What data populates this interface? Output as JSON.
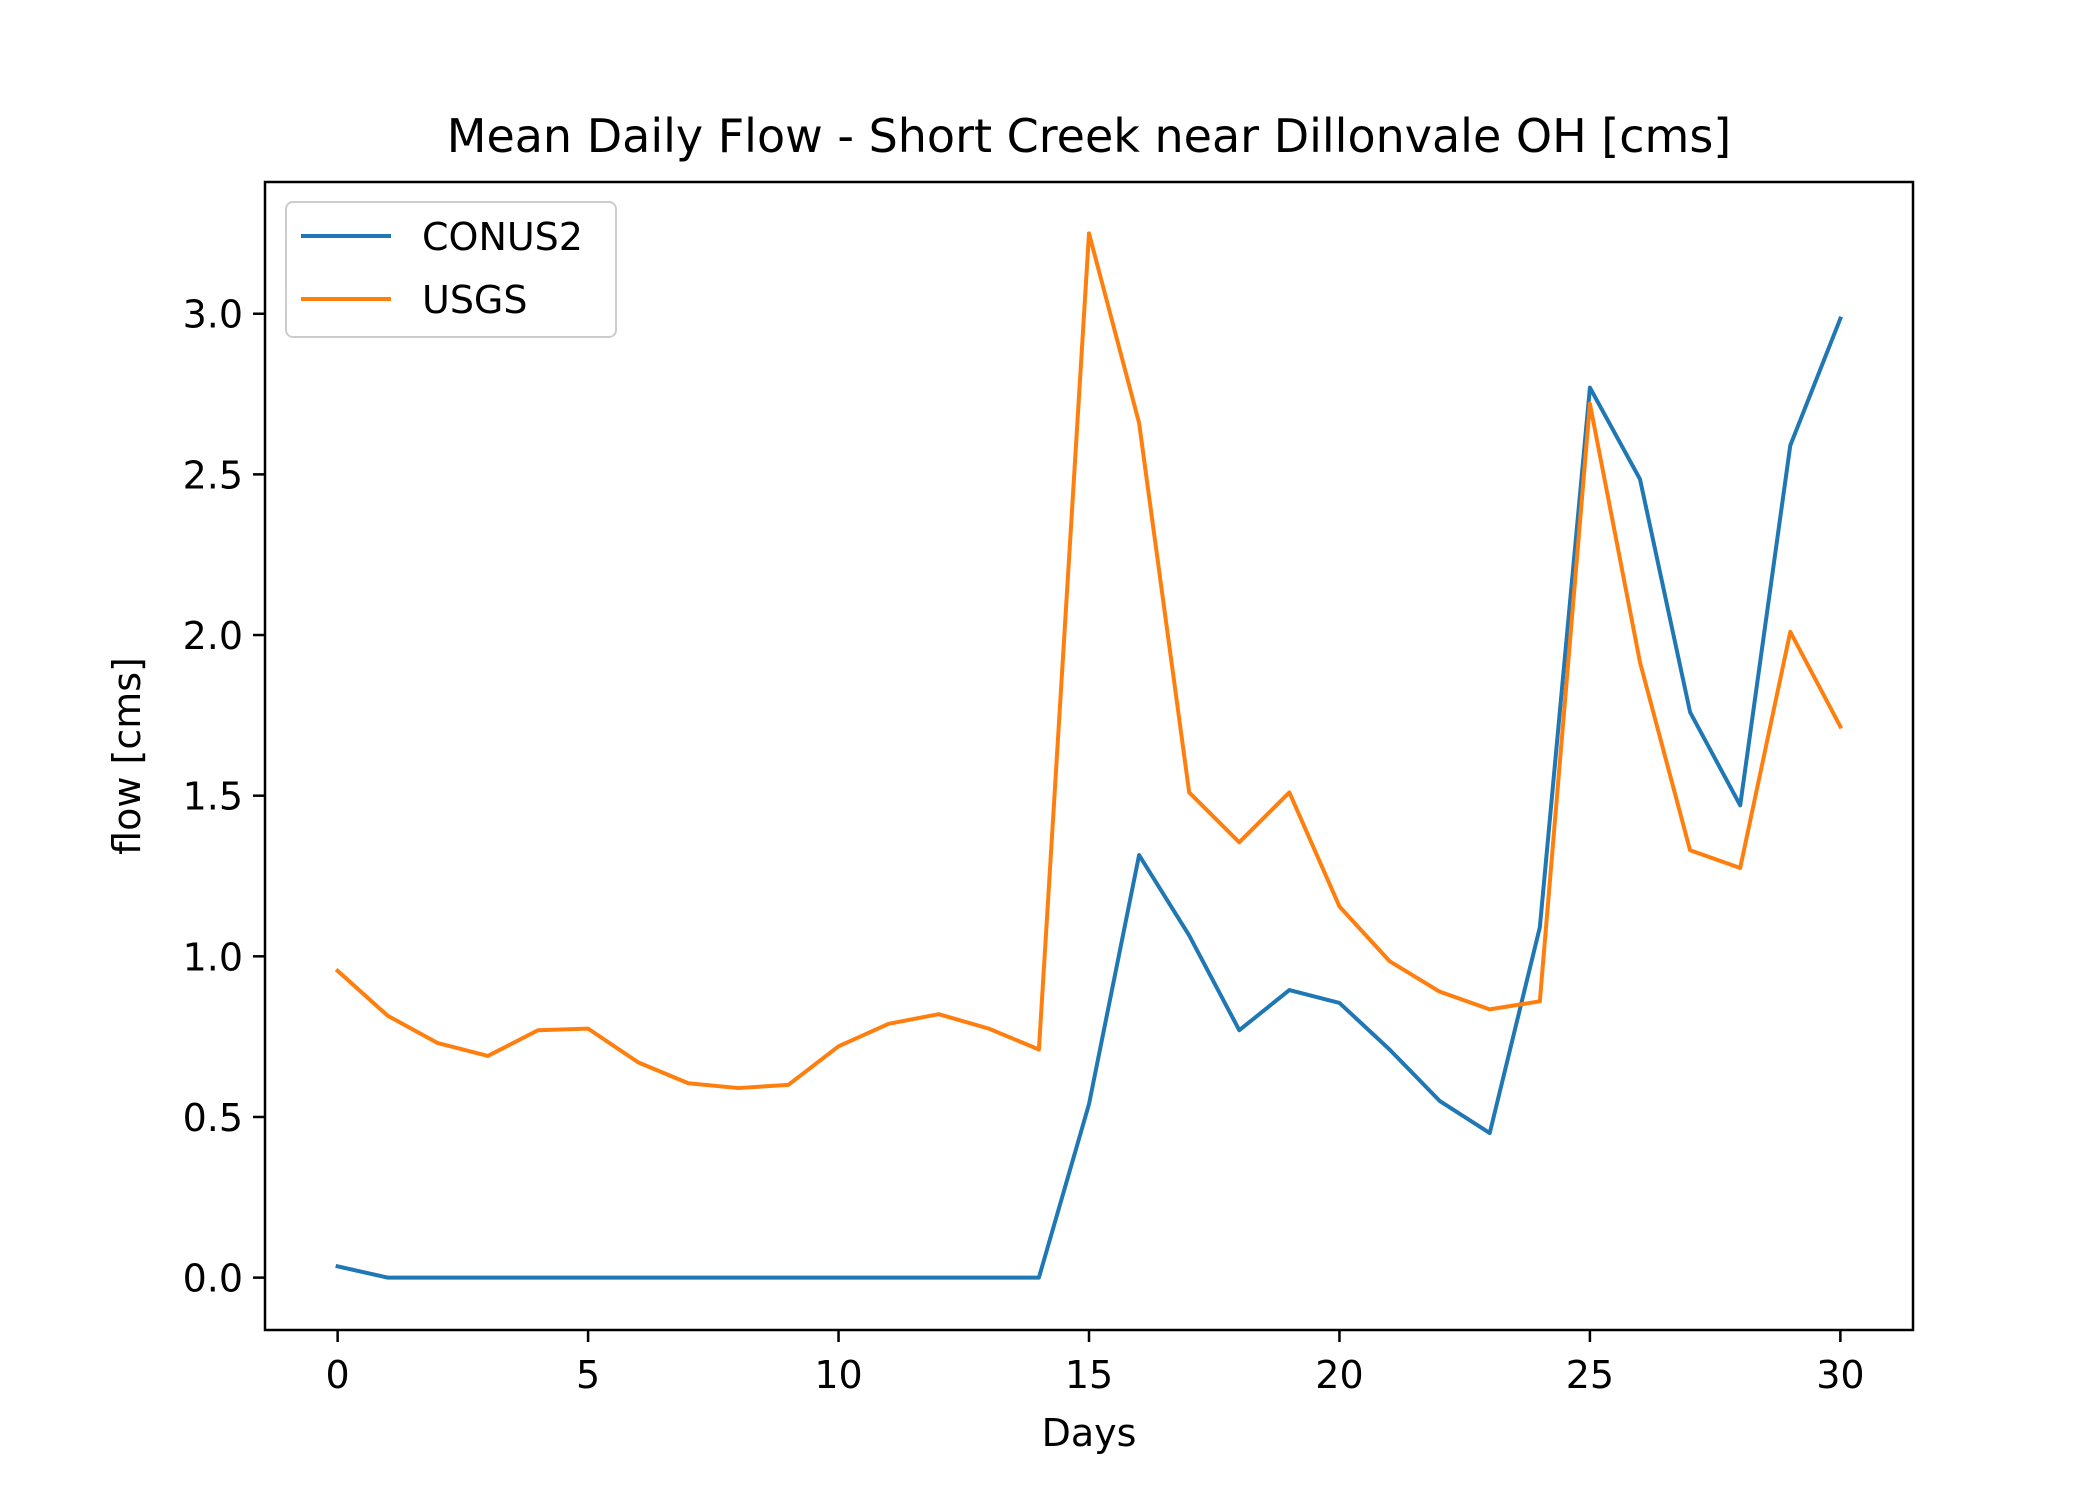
{
  "chart_data": {
    "type": "line",
    "title": "Mean Daily Flow - Short Creek near Dillonvale OH [cms]",
    "xlabel": "Days",
    "ylabel": "flow [cms]",
    "xlim": [
      -1.45,
      31.45
    ],
    "ylim": [
      -0.163,
      3.41
    ],
    "xticks": [
      0,
      5,
      10,
      15,
      20,
      25,
      30
    ],
    "xtick_labels": [
      "0",
      "5",
      "10",
      "15",
      "20",
      "25",
      "30"
    ],
    "yticks": [
      0.0,
      0.5,
      1.0,
      1.5,
      2.0,
      2.5,
      3.0
    ],
    "ytick_labels": [
      "0.0",
      "0.5",
      "1.0",
      "1.5",
      "2.0",
      "2.5",
      "3.0"
    ],
    "grid": false,
    "legend_position": "top-left",
    "x": [
      0,
      1,
      2,
      3,
      4,
      5,
      6,
      7,
      8,
      9,
      10,
      11,
      12,
      13,
      14,
      15,
      16,
      17,
      18,
      19,
      20,
      21,
      22,
      23,
      24,
      25,
      26,
      27,
      28,
      29,
      30
    ],
    "series": [
      {
        "name": "CONUS2",
        "color": "#1f77b4",
        "values": [
          0.035,
          0.0,
          0.0,
          0.0,
          0.0,
          0.0,
          0.0,
          0.0,
          0.0,
          0.0,
          0.0,
          0.0,
          0.0,
          0.0,
          0.0,
          0.54,
          1.315,
          1.065,
          0.77,
          0.895,
          0.855,
          0.71,
          0.55,
          0.45,
          1.09,
          2.77,
          2.485,
          1.76,
          1.47,
          2.59,
          2.985
        ]
      },
      {
        "name": "USGS",
        "color": "#ff7f0e",
        "values": [
          0.955,
          0.815,
          0.73,
          0.69,
          0.77,
          0.775,
          0.67,
          0.605,
          0.59,
          0.6,
          0.72,
          0.79,
          0.82,
          0.775,
          0.71,
          3.25,
          2.66,
          1.51,
          1.355,
          1.51,
          1.155,
          0.985,
          0.89,
          0.835,
          0.86,
          2.72,
          1.915,
          1.33,
          1.275,
          2.01,
          1.715
        ]
      }
    ]
  }
}
